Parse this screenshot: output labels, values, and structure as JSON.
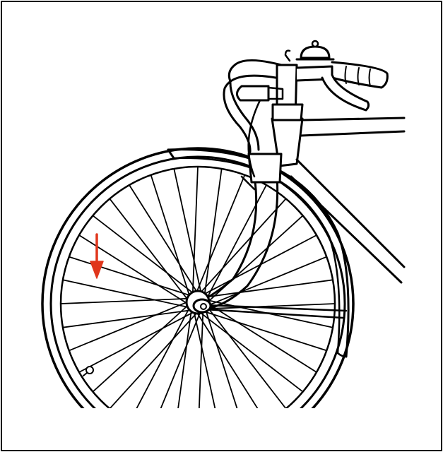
{
  "diagram": {
    "subject": "bicycle-front-wheel",
    "spoke_count": 36,
    "colors": {
      "line": "#000000",
      "background": "#ffffff",
      "arrow": "#e0361c"
    },
    "arrow": {
      "direction": "down",
      "icon": "arrow-down-icon",
      "points_to": "wheel-spoke"
    }
  }
}
